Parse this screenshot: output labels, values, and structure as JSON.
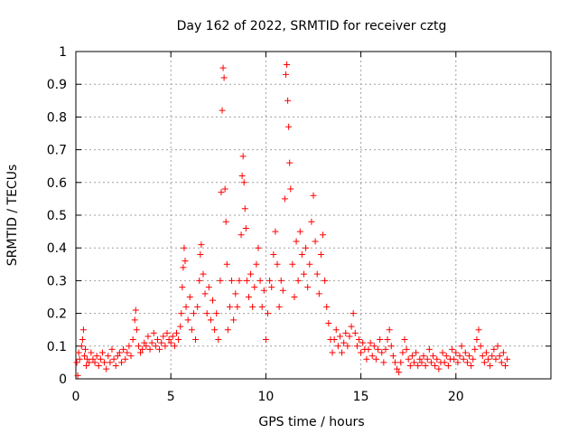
{
  "chart_data": {
    "type": "scatter",
    "title": "Day 162 of 2022, SRMTID for receiver cztg",
    "xlabel": "GPS time / hours",
    "ylabel": "SRMTID / TECUs",
    "xlim": [
      0,
      25
    ],
    "ylim": [
      0,
      1
    ],
    "xticks": [
      "0",
      "5",
      "10",
      "15",
      "20"
    ],
    "yticks": [
      "0",
      "0.1",
      "0.2",
      "0.3",
      "0.4",
      "0.5",
      "0.6",
      "0.7",
      "0.8",
      "0.9",
      "1"
    ],
    "grid": true,
    "marker": "plus",
    "series": [
      {
        "name": "SRMTID",
        "color": "#ff0000",
        "points": [
          [
            0.05,
            0.05
          ],
          [
            0.1,
            0.01
          ],
          [
            0.15,
            0.08
          ],
          [
            0.2,
            0.06
          ],
          [
            0.3,
            0.1
          ],
          [
            0.35,
            0.12
          ],
          [
            0.4,
            0.15
          ],
          [
            0.45,
            0.07
          ],
          [
            0.5,
            0.09
          ],
          [
            0.55,
            0.04
          ],
          [
            0.6,
            0.06
          ],
          [
            0.7,
            0.05
          ],
          [
            0.8,
            0.08
          ],
          [
            0.9,
            0.06
          ],
          [
            1.0,
            0.05
          ],
          [
            1.1,
            0.07
          ],
          [
            1.2,
            0.04
          ],
          [
            1.3,
            0.06
          ],
          [
            1.4,
            0.08
          ],
          [
            1.5,
            0.05
          ],
          [
            1.6,
            0.03
          ],
          [
            1.7,
            0.07
          ],
          [
            1.8,
            0.05
          ],
          [
            1.9,
            0.09
          ],
          [
            2.0,
            0.06
          ],
          [
            2.1,
            0.04
          ],
          [
            2.2,
            0.07
          ],
          [
            2.3,
            0.08
          ],
          [
            2.4,
            0.05
          ],
          [
            2.5,
            0.09
          ],
          [
            2.6,
            0.06
          ],
          [
            2.7,
            0.08
          ],
          [
            2.8,
            0.1
          ],
          [
            2.9,
            0.07
          ],
          [
            3.0,
            0.12
          ],
          [
            3.1,
            0.18
          ],
          [
            3.15,
            0.21
          ],
          [
            3.2,
            0.15
          ],
          [
            3.3,
            0.1
          ],
          [
            3.4,
            0.08
          ],
          [
            3.5,
            0.09
          ],
          [
            3.6,
            0.11
          ],
          [
            3.7,
            0.1
          ],
          [
            3.8,
            0.13
          ],
          [
            3.9,
            0.09
          ],
          [
            4.0,
            0.11
          ],
          [
            4.1,
            0.14
          ],
          [
            4.2,
            0.1
          ],
          [
            4.3,
            0.12
          ],
          [
            4.4,
            0.09
          ],
          [
            4.5,
            0.11
          ],
          [
            4.6,
            0.13
          ],
          [
            4.7,
            0.1
          ],
          [
            4.8,
            0.14
          ],
          [
            4.9,
            0.12
          ],
          [
            5.0,
            0.11
          ],
          [
            5.1,
            0.13
          ],
          [
            5.2,
            0.1
          ],
          [
            5.3,
            0.14
          ],
          [
            5.4,
            0.12
          ],
          [
            5.5,
            0.16
          ],
          [
            5.55,
            0.2
          ],
          [
            5.6,
            0.28
          ],
          [
            5.65,
            0.34
          ],
          [
            5.7,
            0.4
          ],
          [
            5.75,
            0.36
          ],
          [
            5.8,
            0.22
          ],
          [
            5.9,
            0.18
          ],
          [
            6.0,
            0.25
          ],
          [
            6.1,
            0.15
          ],
          [
            6.2,
            0.2
          ],
          [
            6.3,
            0.12
          ],
          [
            6.4,
            0.22
          ],
          [
            6.5,
            0.3
          ],
          [
            6.55,
            0.38
          ],
          [
            6.6,
            0.41
          ],
          [
            6.7,
            0.32
          ],
          [
            6.8,
            0.26
          ],
          [
            6.9,
            0.2
          ],
          [
            7.0,
            0.28
          ],
          [
            7.1,
            0.18
          ],
          [
            7.2,
            0.24
          ],
          [
            7.3,
            0.15
          ],
          [
            7.4,
            0.2
          ],
          [
            7.5,
            0.12
          ],
          [
            7.6,
            0.3
          ],
          [
            7.65,
            0.57
          ],
          [
            7.7,
            0.82
          ],
          [
            7.75,
            0.95
          ],
          [
            7.8,
            0.92
          ],
          [
            7.85,
            0.58
          ],
          [
            7.9,
            0.48
          ],
          [
            7.95,
            0.35
          ],
          [
            8.0,
            0.15
          ],
          [
            8.1,
            0.22
          ],
          [
            8.2,
            0.3
          ],
          [
            8.3,
            0.18
          ],
          [
            8.4,
            0.26
          ],
          [
            8.5,
            0.22
          ],
          [
            8.6,
            0.3
          ],
          [
            8.7,
            0.44
          ],
          [
            8.75,
            0.62
          ],
          [
            8.8,
            0.68
          ],
          [
            8.85,
            0.6
          ],
          [
            8.9,
            0.52
          ],
          [
            8.95,
            0.46
          ],
          [
            9.0,
            0.3
          ],
          [
            9.1,
            0.25
          ],
          [
            9.2,
            0.32
          ],
          [
            9.3,
            0.22
          ],
          [
            9.4,
            0.28
          ],
          [
            9.5,
            0.35
          ],
          [
            9.6,
            0.4
          ],
          [
            9.7,
            0.3
          ],
          [
            9.8,
            0.22
          ],
          [
            9.9,
            0.27
          ],
          [
            10.0,
            0.12
          ],
          [
            10.1,
            0.2
          ],
          [
            10.2,
            0.3
          ],
          [
            10.3,
            0.28
          ],
          [
            10.4,
            0.38
          ],
          [
            10.5,
            0.45
          ],
          [
            10.6,
            0.35
          ],
          [
            10.7,
            0.22
          ],
          [
            10.8,
            0.3
          ],
          [
            10.9,
            0.27
          ],
          [
            11.0,
            0.55
          ],
          [
            11.05,
            0.93
          ],
          [
            11.1,
            0.96
          ],
          [
            11.15,
            0.85
          ],
          [
            11.2,
            0.77
          ],
          [
            11.25,
            0.66
          ],
          [
            11.3,
            0.58
          ],
          [
            11.4,
            0.35
          ],
          [
            11.5,
            0.25
          ],
          [
            11.6,
            0.42
          ],
          [
            11.7,
            0.3
          ],
          [
            11.8,
            0.45
          ],
          [
            11.9,
            0.38
          ],
          [
            12.0,
            0.32
          ],
          [
            12.1,
            0.4
          ],
          [
            12.2,
            0.28
          ],
          [
            12.3,
            0.35
          ],
          [
            12.4,
            0.48
          ],
          [
            12.5,
            0.56
          ],
          [
            12.6,
            0.42
          ],
          [
            12.7,
            0.32
          ],
          [
            12.8,
            0.26
          ],
          [
            12.9,
            0.38
          ],
          [
            13.0,
            0.44
          ],
          [
            13.1,
            0.3
          ],
          [
            13.2,
            0.22
          ],
          [
            13.3,
            0.17
          ],
          [
            13.4,
            0.12
          ],
          [
            13.5,
            0.08
          ],
          [
            13.6,
            0.12
          ],
          [
            13.7,
            0.15
          ],
          [
            13.8,
            0.1
          ],
          [
            13.9,
            0.13
          ],
          [
            14.0,
            0.08
          ],
          [
            14.1,
            0.11
          ],
          [
            14.2,
            0.14
          ],
          [
            14.3,
            0.1
          ],
          [
            14.4,
            0.13
          ],
          [
            14.5,
            0.16
          ],
          [
            14.6,
            0.2
          ],
          [
            14.7,
            0.14
          ],
          [
            14.8,
            0.1
          ],
          [
            14.9,
            0.12
          ],
          [
            15.0,
            0.08
          ],
          [
            15.1,
            0.11
          ],
          [
            15.2,
            0.09
          ],
          [
            15.3,
            0.06
          ],
          [
            15.4,
            0.09
          ],
          [
            15.5,
            0.11
          ],
          [
            15.6,
            0.07
          ],
          [
            15.7,
            0.1
          ],
          [
            15.8,
            0.06
          ],
          [
            15.9,
            0.09
          ],
          [
            16.0,
            0.12
          ],
          [
            16.1,
            0.08
          ],
          [
            16.2,
            0.05
          ],
          [
            16.3,
            0.09
          ],
          [
            16.4,
            0.12
          ],
          [
            16.5,
            0.15
          ],
          [
            16.6,
            0.1
          ],
          [
            16.7,
            0.07
          ],
          [
            16.8,
            0.05
          ],
          [
            16.9,
            0.03
          ],
          [
            17.0,
            0.02
          ],
          [
            17.1,
            0.05
          ],
          [
            17.2,
            0.08
          ],
          [
            17.3,
            0.12
          ],
          [
            17.4,
            0.09
          ],
          [
            17.5,
            0.06
          ],
          [
            17.6,
            0.04
          ],
          [
            17.7,
            0.07
          ],
          [
            17.8,
            0.05
          ],
          [
            17.9,
            0.08
          ],
          [
            18.0,
            0.04
          ],
          [
            18.1,
            0.06
          ],
          [
            18.2,
            0.05
          ],
          [
            18.3,
            0.07
          ],
          [
            18.4,
            0.04
          ],
          [
            18.5,
            0.06
          ],
          [
            18.6,
            0.09
          ],
          [
            18.7,
            0.05
          ],
          [
            18.8,
            0.07
          ],
          [
            18.9,
            0.04
          ],
          [
            19.0,
            0.06
          ],
          [
            19.1,
            0.03
          ],
          [
            19.2,
            0.05
          ],
          [
            19.3,
            0.08
          ],
          [
            19.4,
            0.05
          ],
          [
            19.5,
            0.07
          ],
          [
            19.6,
            0.04
          ],
          [
            19.7,
            0.06
          ],
          [
            19.8,
            0.09
          ],
          [
            19.9,
            0.06
          ],
          [
            20.0,
            0.08
          ],
          [
            20.1,
            0.05
          ],
          [
            20.2,
            0.07
          ],
          [
            20.3,
            0.1
          ],
          [
            20.4,
            0.06
          ],
          [
            20.5,
            0.08
          ],
          [
            20.6,
            0.05
          ],
          [
            20.7,
            0.07
          ],
          [
            20.8,
            0.04
          ],
          [
            20.9,
            0.06
          ],
          [
            21.0,
            0.09
          ],
          [
            21.1,
            0.12
          ],
          [
            21.2,
            0.15
          ],
          [
            21.3,
            0.1
          ],
          [
            21.4,
            0.07
          ],
          [
            21.5,
            0.05
          ],
          [
            21.6,
            0.08
          ],
          [
            21.7,
            0.06
          ],
          [
            21.8,
            0.04
          ],
          [
            21.9,
            0.07
          ],
          [
            22.0,
            0.09
          ],
          [
            22.1,
            0.06
          ],
          [
            22.2,
            0.1
          ],
          [
            22.3,
            0.07
          ],
          [
            22.4,
            0.05
          ],
          [
            22.5,
            0.08
          ],
          [
            22.6,
            0.04
          ],
          [
            22.7,
            0.06
          ]
        ]
      }
    ]
  }
}
